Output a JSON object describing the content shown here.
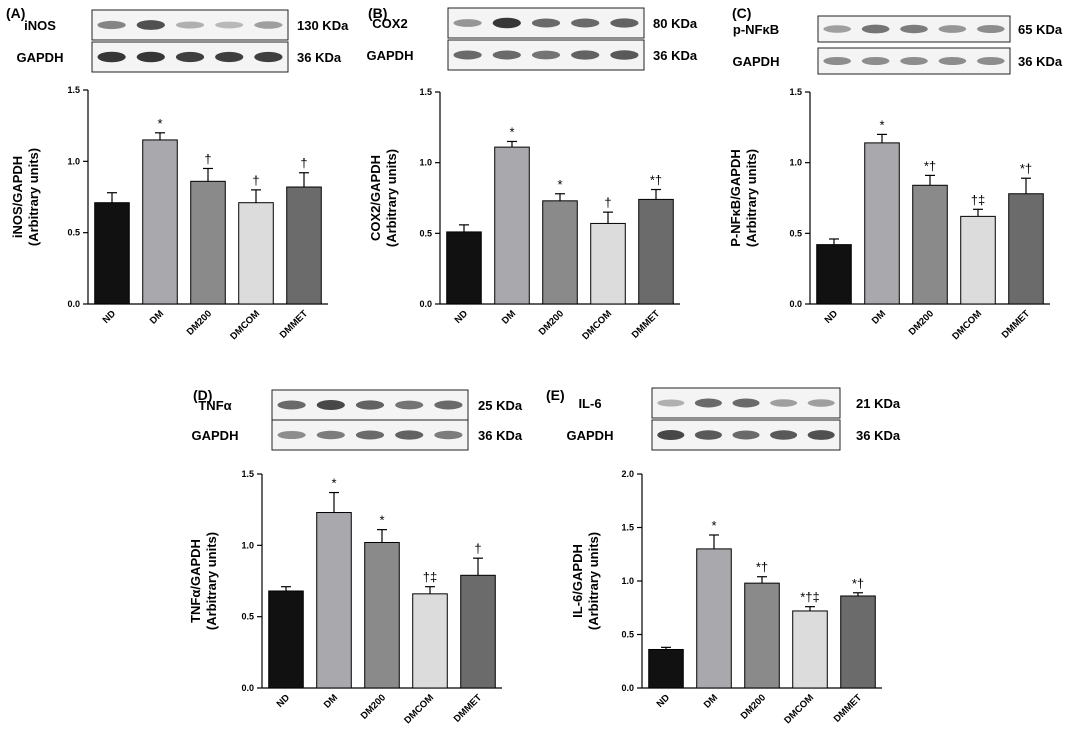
{
  "chart_data": [
    {
      "panel": "(A)",
      "type": "bar",
      "blots": [
        {
          "protein": "iNOS",
          "size": "130 KDa",
          "intensities": [
            0.45,
            0.75,
            0.2,
            0.15,
            0.3
          ]
        },
        {
          "protein": "GAPDH",
          "size": "36 KDa",
          "intensities": [
            0.9,
            0.9,
            0.85,
            0.85,
            0.85
          ]
        }
      ],
      "ylabel": [
        "iNOS/GAPDH",
        "(Arbitrary units)"
      ],
      "ylim": [
        0,
        1.5
      ],
      "yticks": [
        "0.0",
        "0.5",
        "1.0",
        "1.5"
      ],
      "categories": [
        "ND",
        "DM",
        "DM200",
        "DMCOM",
        "DMMET"
      ],
      "values": [
        0.71,
        1.15,
        0.86,
        0.71,
        0.82
      ],
      "errors": [
        0.07,
        0.05,
        0.09,
        0.09,
        0.1
      ],
      "annotations": [
        "",
        "*",
        "†",
        "†",
        "†"
      ]
    },
    {
      "panel": "(B)",
      "type": "bar",
      "blots": [
        {
          "protein": "COX2",
          "size": "80 KDa",
          "intensities": [
            0.35,
            0.9,
            0.6,
            0.6,
            0.65
          ]
        },
        {
          "protein": "GAPDH",
          "size": "36 KDa",
          "intensities": [
            0.6,
            0.6,
            0.55,
            0.65,
            0.7
          ]
        }
      ],
      "ylabel": [
        "COX2/GAPDH",
        "(Arbitrary units)"
      ],
      "ylim": [
        0,
        1.5
      ],
      "yticks": [
        "0.0",
        "0.5",
        "1.0",
        "1.5"
      ],
      "categories": [
        "ND",
        "DM",
        "DM200",
        "DMCOM",
        "DMMET"
      ],
      "values": [
        0.51,
        1.11,
        0.73,
        0.57,
        0.74
      ],
      "errors": [
        0.05,
        0.04,
        0.05,
        0.08,
        0.07
      ],
      "annotations": [
        "",
        "*",
        "*",
        "†",
        "*†"
      ]
    },
    {
      "panel": "(C)",
      "type": "bar",
      "blots": [
        {
          "protein": "p-NFκB",
          "size": "65 KDa",
          "intensities": [
            0.3,
            0.55,
            0.5,
            0.35,
            0.4
          ]
        },
        {
          "protein": "GAPDH",
          "size": "36 KDa",
          "intensities": [
            0.4,
            0.4,
            0.4,
            0.4,
            0.4
          ]
        }
      ],
      "ylabel": [
        "P-NFκB/GAPDH",
        "(Arbitrary units)"
      ],
      "ylim": [
        0,
        1.5
      ],
      "yticks": [
        "0.0",
        "0.5",
        "1.0",
        "1.5"
      ],
      "categories": [
        "ND",
        "DM",
        "DM200",
        "DMCOM",
        "DMMET"
      ],
      "values": [
        0.42,
        1.14,
        0.84,
        0.62,
        0.78
      ],
      "errors": [
        0.04,
        0.06,
        0.07,
        0.05,
        0.11
      ],
      "annotations": [
        "",
        "*",
        "*†",
        "†‡",
        "*†"
      ]
    },
    {
      "panel": "(D)",
      "type": "bar",
      "blots": [
        {
          "protein": "TNFα",
          "size": "25 KDa",
          "intensities": [
            0.6,
            0.8,
            0.65,
            0.55,
            0.6
          ]
        },
        {
          "protein": "GAPDH",
          "size": "36 KDa",
          "intensities": [
            0.4,
            0.5,
            0.6,
            0.65,
            0.5
          ]
        }
      ],
      "ylabel": [
        "TNFα/GAPDH",
        "(Arbitrary units)"
      ],
      "ylim": [
        0,
        1.5
      ],
      "yticks": [
        "0.0",
        "0.5",
        "1.0",
        "1.5"
      ],
      "categories": [
        "ND",
        "DM",
        "DM200",
        "DMCOM",
        "DMMET"
      ],
      "values": [
        0.68,
        1.23,
        1.02,
        0.66,
        0.79
      ],
      "errors": [
        0.03,
        0.14,
        0.09,
        0.05,
        0.12
      ],
      "annotations": [
        "",
        "*",
        "*",
        "†‡",
        "†"
      ]
    },
    {
      "panel": "(E)",
      "type": "bar",
      "blots": [
        {
          "protein": "IL-6",
          "size": "21 KDa",
          "intensities": [
            0.2,
            0.6,
            0.6,
            0.3,
            0.3
          ]
        },
        {
          "protein": "GAPDH",
          "size": "36 KDa",
          "intensities": [
            0.8,
            0.7,
            0.6,
            0.7,
            0.75
          ]
        }
      ],
      "ylabel": [
        "IL-6/GAPDH",
        "(Arbitrary units)"
      ],
      "ylim": [
        0,
        2.0
      ],
      "yticks": [
        "0.0",
        "0.5",
        "1.0",
        "1.5",
        "2.0"
      ],
      "categories": [
        "ND",
        "DM",
        "DM200",
        "DMCOM",
        "DMMET"
      ],
      "values": [
        0.36,
        1.3,
        0.98,
        0.72,
        0.86
      ],
      "errors": [
        0.02,
        0.13,
        0.06,
        0.04,
        0.03
      ],
      "annotations": [
        "",
        "*",
        "*†",
        "*†‡",
        "*†"
      ]
    }
  ],
  "colors": {
    "bars": [
      "#111111",
      "#a9a9ad",
      "#8a8a8a",
      "#dcdcdc",
      "#6b6b6b"
    ],
    "blot_background": "#f4f4f4",
    "blot_band": "#1a1a1a"
  }
}
